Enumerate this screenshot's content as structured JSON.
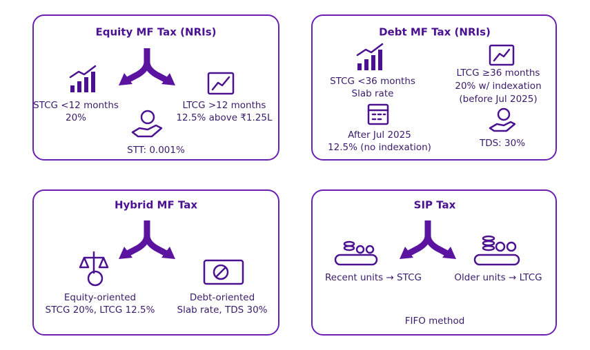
{
  "panels": [
    {
      "title": "Equity MF Tax (NRIs)",
      "items": [
        {
          "lines": [
            "STCG <12 months",
            "20%"
          ]
        },
        {
          "lines": [
            "LTCG >12 months",
            "12.5% above ₹1.25L"
          ]
        },
        {
          "lines": [
            "STT: 0.001%"
          ]
        }
      ]
    },
    {
      "title": "Debt MF Tax (NRIs)",
      "items": [
        {
          "lines": [
            "STCG <36 months",
            "Slab rate"
          ]
        },
        {
          "lines": [
            "LTCG ≥36 months",
            "20% w/ indexation",
            "(before Jul 2025)"
          ]
        },
        {
          "lines": [
            "After Jul 2025",
            "12.5% (no indexation)"
          ]
        },
        {
          "lines": [
            "TDS: 30%"
          ]
        }
      ]
    },
    {
      "title": "Hybrid MF Tax",
      "items": [
        {
          "lines": [
            "Equity-oriented",
            "STCG 20%, LTCG 12.5%"
          ]
        },
        {
          "lines": [
            "Debt-oriented",
            "Slab rate, TDS 30%"
          ]
        }
      ]
    },
    {
      "title": "SIP Tax",
      "items": [
        {
          "lines": [
            "Recent units → STCG"
          ]
        },
        {
          "lines": [
            "Older units → LTCG"
          ]
        },
        {
          "lines": [
            "FIFO method"
          ]
        }
      ]
    }
  ]
}
